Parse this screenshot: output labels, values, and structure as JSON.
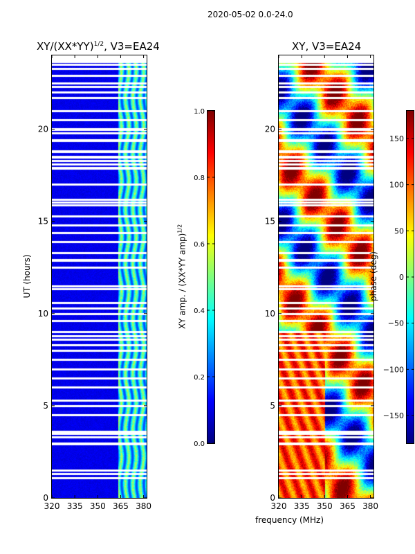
{
  "header": {
    "suptitle": "2020-05-02 0.0-24.0"
  },
  "chart_data": [
    {
      "type": "heatmap",
      "id": "amp",
      "title": "XY/(XX*YY)",
      "title_superscript": "1/2",
      "title_suffix": ", V3=EA24",
      "xlabel": "",
      "ylabel": "UT (hours)",
      "xlim": [
        320,
        382
      ],
      "ylim": [
        0,
        24
      ],
      "xticks": [
        320,
        335,
        350,
        365,
        380
      ],
      "yticks": [
        0,
        5,
        10,
        15,
        20
      ],
      "colormap": "jet",
      "colorbar": {
        "label": "XY amp. / (XX*YY amp)",
        "label_superscript": "1/2",
        "range": [
          0.0,
          1.0
        ],
        "ticks": [
          "0.0",
          "0.2",
          "0.4",
          "0.6",
          "0.8",
          "1.0"
        ]
      },
      "description_values": {
        "low_band_MHz": [
          320,
          363
        ],
        "high_band_MHz": [
          363,
          382
        ],
        "low_band_amp": 0.1,
        "high_band_amp_range": [
          0.2,
          0.6
        ]
      }
    },
    {
      "type": "heatmap",
      "id": "phase",
      "title": "XY, V3=EA24",
      "xlabel": "frequency (MHz)",
      "ylabel": "",
      "xlim": [
        320,
        382
      ],
      "ylim": [
        0,
        24
      ],
      "xticks": [
        320,
        335,
        350,
        365,
        380
      ],
      "yticks": [
        0,
        5,
        10,
        15,
        20
      ],
      "colormap": "jet",
      "colorbar": {
        "label": "phase (deg)",
        "range": [
          -180,
          180
        ],
        "ticks": [
          "−150",
          "−100",
          "−50",
          "0",
          "50",
          "100",
          "150"
        ]
      }
    }
  ],
  "flagged_rows_ut": [
    1.1,
    1.3,
    1.5,
    2.95,
    3.3,
    3.5,
    3.62,
    4.5,
    5.0,
    5.3,
    6.0,
    6.5,
    7.0,
    7.5,
    8.0,
    8.3,
    8.6,
    8.8,
    9.0,
    9.6,
    10.0,
    10.3,
    10.6,
    11.35,
    11.5,
    12.5,
    12.9,
    13.3,
    13.9,
    14.4,
    14.8,
    15.3,
    15.9,
    16.05,
    16.2,
    17.0,
    17.9,
    18.1,
    18.3,
    18.5,
    18.8,
    19.4,
    19.8,
    20.0,
    20.5,
    21.0,
    21.7,
    22.0,
    22.3,
    22.5,
    22.9,
    23.3,
    23.5
  ]
}
